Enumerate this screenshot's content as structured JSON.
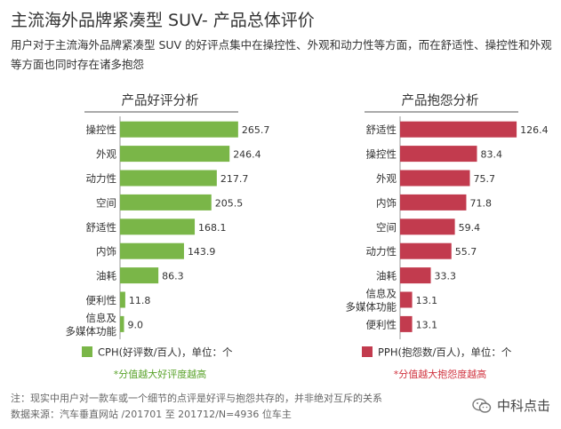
{
  "title": "主流海外品牌紧凑型 SUV- 产品总体评价",
  "subtitle": "用户对于主流海外品牌紧凑型 SUV 的好评点集中在操控性、外观和动力性等方面，而在舒适性、操控性和外观等方面也同时存在诸多抱怨",
  "footer": {
    "note": "注：现实中用户对一款车或一个细节的点评是好评与抱怨共存的，并非绝对互斥的关系",
    "source": "数据来源：汽车垂直网站 /201701 至 201712/N=4936 位车主",
    "watermark": "中科点击"
  },
  "colors": {
    "positive": "#7ab648",
    "negative": "#c23b4e",
    "positive_text": "#5aa32b",
    "negative_text": "#d0333f"
  },
  "chart_data": [
    {
      "type": "bar",
      "orientation": "horizontal",
      "title": "产品好评分析",
      "categories": [
        "操控性",
        "外观",
        "动力性",
        "空间",
        "舒适性",
        "内饰",
        "油耗",
        "便利性",
        "信息及\n多媒体功能"
      ],
      "values": [
        265.7,
        246.4,
        217.7,
        205.5,
        168.1,
        143.9,
        86.3,
        11.8,
        9.0
      ],
      "value_labels": [
        "265.7",
        "246.4",
        "217.7",
        "205.5",
        "168.1",
        "143.9",
        "86.3",
        "11.8",
        "9.0"
      ],
      "legend": "CPH(好评数/百人)，单位：个",
      "footnote": "*分值越大好评度越高",
      "xlim": [
        0,
        280
      ]
    },
    {
      "type": "bar",
      "orientation": "horizontal",
      "title": "产品抱怨分析",
      "categories": [
        "舒适性",
        "操控性",
        "外观",
        "内饰",
        "空间",
        "动力性",
        "油耗",
        "信息及\n多媒体功能",
        "便利性"
      ],
      "values": [
        126.4,
        83.4,
        75.7,
        71.8,
        59.4,
        55.7,
        33.3,
        13.1,
        13.1
      ],
      "value_labels": [
        "126.4",
        "83.4",
        "75.7",
        "71.8",
        "59.4",
        "55.7",
        "33.3",
        "13.1",
        "13.1"
      ],
      "legend": "PPH(抱怨数/百人)，单位：个",
      "footnote": "*分值越大抱怨度越高",
      "xlim": [
        0,
        135
      ]
    }
  ]
}
